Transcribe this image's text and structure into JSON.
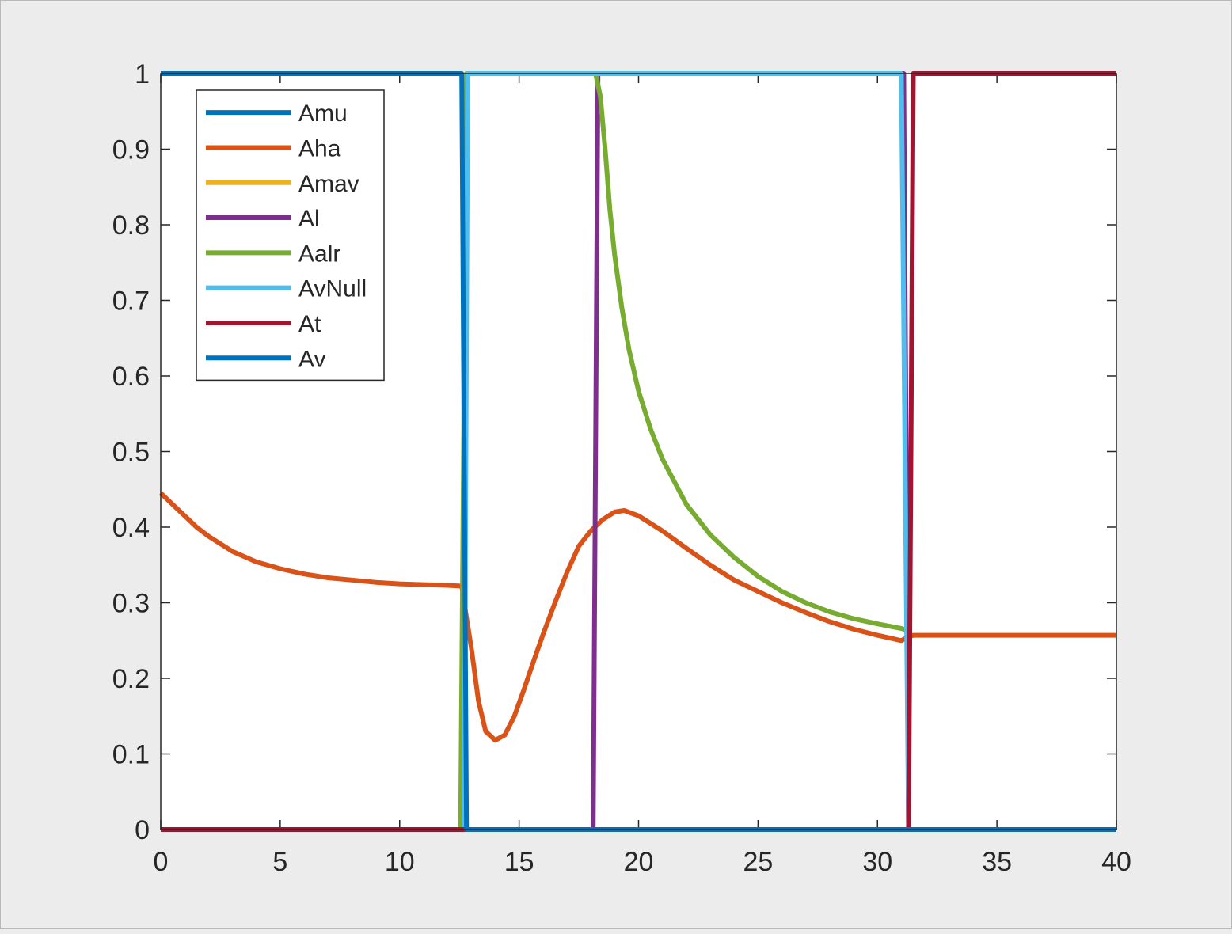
{
  "chart_data": {
    "type": "line",
    "title": "",
    "xlabel": "",
    "ylabel": "",
    "xlim": [
      0,
      40
    ],
    "ylim": [
      0,
      1
    ],
    "xticks": [
      0,
      5,
      10,
      15,
      20,
      25,
      30,
      35,
      40
    ],
    "yticks": [
      0,
      0.1,
      0.2,
      0.3,
      0.4,
      0.5,
      0.6,
      0.7,
      0.8,
      0.9,
      1
    ],
    "xtick_labels": [
      "0",
      "5",
      "10",
      "15",
      "20",
      "25",
      "30",
      "35",
      "40"
    ],
    "ytick_labels": [
      "0",
      "0.1",
      "0.2",
      "0.3",
      "0.4",
      "0.5",
      "0.6",
      "0.7",
      "0.8",
      "0.9",
      "1"
    ],
    "grid": false,
    "legend_position": "top-left",
    "series": [
      {
        "name": "Amu",
        "color": "#0072BD",
        "x": [
          0,
          40
        ],
        "y": [
          0,
          0
        ]
      },
      {
        "name": "Aha",
        "color": "#D95319",
        "x": [
          0,
          0.5,
          1,
          1.5,
          2,
          3,
          4,
          5,
          6,
          7,
          8,
          9,
          10,
          11,
          12,
          12.6,
          12.7,
          13,
          13.3,
          13.6,
          14,
          14.4,
          14.8,
          15.2,
          15.6,
          16,
          16.5,
          17,
          17.5,
          18,
          18.5,
          19,
          19.4,
          20,
          21,
          22,
          23,
          24,
          25,
          26,
          27,
          28,
          29,
          30,
          31,
          31.3,
          31.5,
          40
        ],
        "y": [
          0.445,
          0.43,
          0.415,
          0.4,
          0.388,
          0.368,
          0.354,
          0.345,
          0.338,
          0.333,
          0.33,
          0.327,
          0.325,
          0.324,
          0.323,
          0.322,
          0.3,
          0.24,
          0.17,
          0.13,
          0.118,
          0.125,
          0.15,
          0.185,
          0.222,
          0.258,
          0.3,
          0.34,
          0.375,
          0.395,
          0.41,
          0.42,
          0.422,
          0.415,
          0.395,
          0.372,
          0.35,
          0.33,
          0.315,
          0.3,
          0.287,
          0.275,
          0.265,
          0.257,
          0.25,
          0.255,
          0.257,
          0.257
        ]
      },
      {
        "name": "Amav",
        "color": "#EDB120",
        "x": [
          0,
          40
        ],
        "y": [
          0,
          0
        ]
      },
      {
        "name": "Al",
        "color": "#7E2F8E",
        "x": [
          0,
          18.1,
          18.3,
          31.1,
          31.3,
          40
        ],
        "y": [
          0,
          0,
          1,
          1,
          0,
          0
        ]
      },
      {
        "name": "Aalr",
        "color": "#77AC30",
        "x": [
          0,
          12.55,
          12.8,
          18.2,
          18.4,
          18.6,
          18.8,
          19,
          19.3,
          19.6,
          20,
          20.5,
          21,
          22,
          23,
          24,
          25,
          26,
          27,
          28,
          29,
          30,
          31,
          31.2
        ],
        "y": [
          0,
          0,
          1,
          1,
          0.97,
          0.9,
          0.82,
          0.76,
          0.69,
          0.635,
          0.58,
          0.53,
          0.49,
          0.43,
          0.39,
          0.36,
          0.335,
          0.315,
          0.3,
          0.288,
          0.279,
          0.272,
          0.266,
          0.264
        ]
      },
      {
        "name": "AvNull",
        "color": "#4DBEEE",
        "x": [
          0,
          12.7,
          12.85,
          31.0,
          31.3,
          40
        ],
        "y": [
          0,
          0,
          1,
          1,
          0,
          0
        ]
      },
      {
        "name": "At",
        "color": "#A2142F",
        "x": [
          0,
          31.3,
          31.5,
          40
        ],
        "y": [
          0,
          0,
          1,
          1
        ]
      },
      {
        "name": "Av",
        "color": "#0072BD",
        "x": [
          0,
          12.6,
          12.8,
          40
        ],
        "y": [
          1,
          1,
          0,
          0
        ]
      }
    ]
  }
}
